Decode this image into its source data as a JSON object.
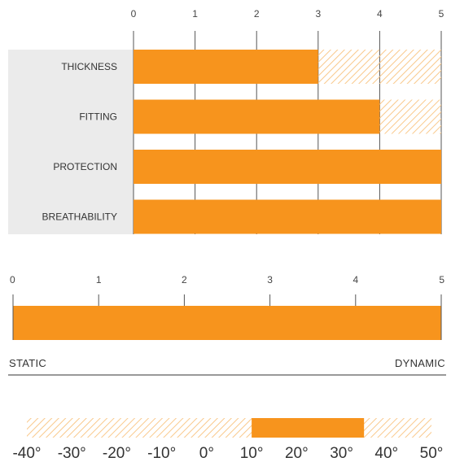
{
  "colors": {
    "accent": "#F7941D",
    "hatch": "#F9C98C",
    "label_bg": "#EBEBEB",
    "grid": "#555555"
  },
  "chart_data": [
    {
      "type": "bar",
      "orientation": "horizontal",
      "categories": [
        "THICKNESS",
        "FITTING",
        "PROTECTION",
        "BREATHABILITY"
      ],
      "values": [
        3,
        4,
        5,
        5
      ],
      "xlim": [
        0,
        5
      ],
      "ticks": [
        "0",
        "1",
        "2",
        "3",
        "4",
        "5"
      ],
      "remainder_style": "hatched"
    },
    {
      "type": "bar",
      "orientation": "horizontal",
      "values": [
        5
      ],
      "xlim": [
        0,
        5
      ],
      "ticks": [
        "0",
        "1",
        "2",
        "3",
        "4",
        "5"
      ],
      "left_label": "STATIC",
      "right_label": "DYNAMIC"
    },
    {
      "type": "bar",
      "orientation": "horizontal",
      "range": [
        10,
        35
      ],
      "xlim": [
        -40,
        50
      ],
      "ticks": [
        "-40°",
        "-30°",
        "-20°",
        "-10°",
        "0°",
        "10°",
        "20°",
        "30°",
        "40°",
        "50°"
      ],
      "remainder_style": "hatched"
    }
  ]
}
